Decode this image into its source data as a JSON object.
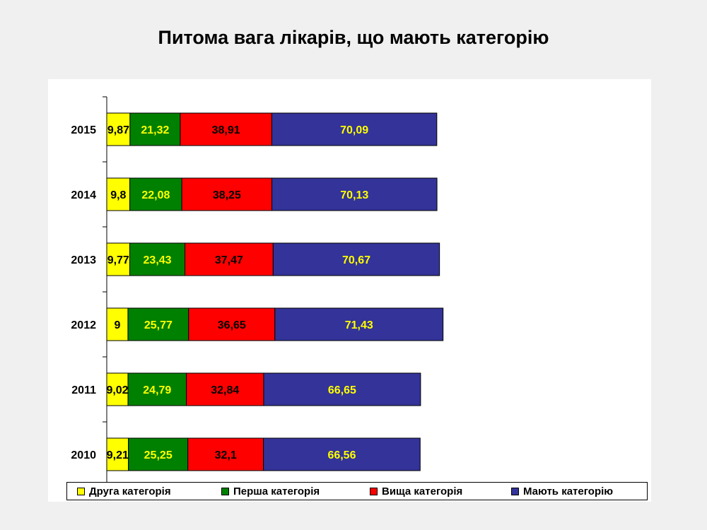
{
  "title": "Питома вага лікарів, що мають категорію",
  "chart_data": {
    "type": "bar",
    "orientation": "horizontal",
    "stacked": true,
    "categories": [
      "2015",
      "2014",
      "2013",
      "2012",
      "2011",
      "2010"
    ],
    "series": [
      {
        "name": "Друга категорія",
        "color": "#ffff00",
        "label_color": "#000000",
        "values": [
          9.87,
          9.8,
          9.77,
          9,
          9.02,
          9.21
        ],
        "labels": [
          "9,87",
          "9,8",
          "9,77",
          "9",
          "9,02",
          "9,21"
        ]
      },
      {
        "name": "Перша категорія",
        "color": "#008000",
        "label_color": "#ffff00",
        "values": [
          21.32,
          22.08,
          23.43,
          25.77,
          24.79,
          25.25
        ],
        "labels": [
          "21,32",
          "22,08",
          "23,43",
          "25,77",
          "24,79",
          "25,25"
        ]
      },
      {
        "name": "Вища категорія",
        "color": "#ff0000",
        "label_color": "#000000",
        "values": [
          38.91,
          38.25,
          37.47,
          36.65,
          32.84,
          32.1
        ],
        "labels": [
          "38,91",
          "38,25",
          "37,47",
          "36,65",
          "32,84",
          "32,1"
        ]
      },
      {
        "name": "Мають категорію",
        "color": "#333399",
        "label_color": "#ffff00",
        "values": [
          70.09,
          70.13,
          70.67,
          71.43,
          66.65,
          66.56
        ],
        "labels": [
          "70,09",
          "70,13",
          "70,67",
          "71,43",
          "66,65",
          "66,56"
        ]
      }
    ],
    "legend_position": "bottom",
    "grid": false
  }
}
